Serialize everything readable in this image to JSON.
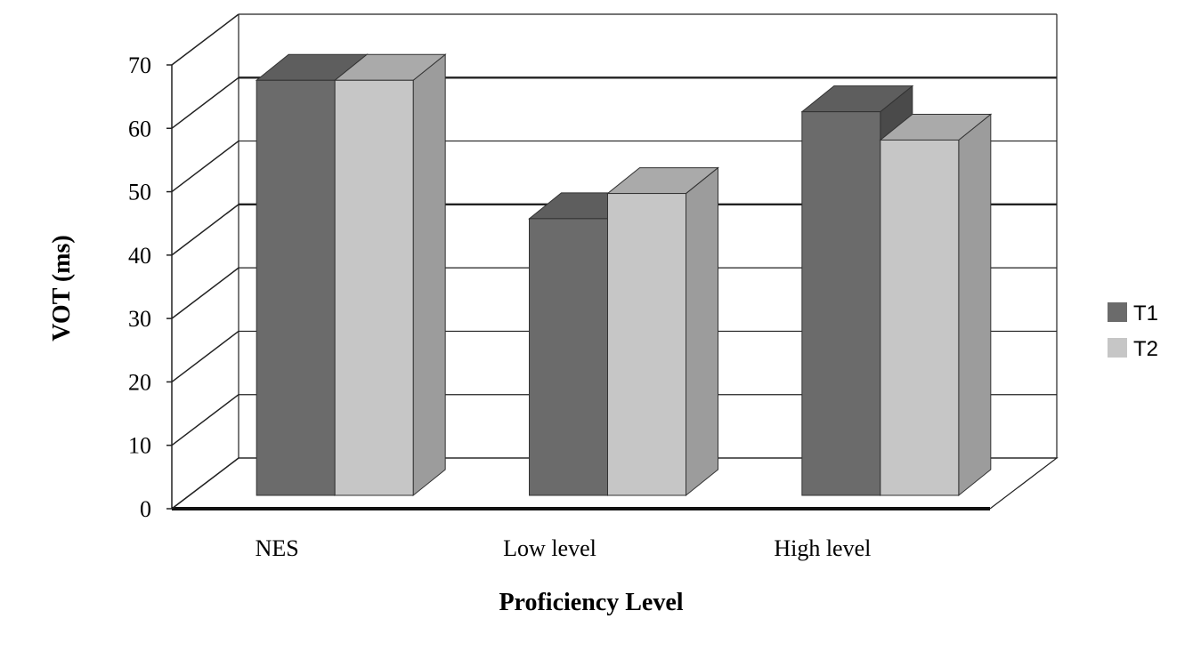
{
  "chart_data": {
    "type": "bar",
    "categories": [
      "NES",
      "Low level",
      "High level"
    ],
    "series": [
      {
        "name": "T1",
        "values": [
          66,
          44,
          61
        ],
        "color": "#6b6b6b",
        "side_color": "#4a4a4a",
        "top_color": "#5e5e5e"
      },
      {
        "name": "T2",
        "values": [
          66,
          48,
          56.5
        ],
        "color": "#c6c6c6",
        "side_color": "#9c9c9c",
        "top_color": "#aaaaaa"
      }
    ],
    "xlabel": "Proficiency Level",
    "ylabel": "VOT (ms)",
    "ylim": [
      0,
      70
    ],
    "yticks": [
      0,
      10,
      20,
      30,
      40,
      50,
      60,
      70
    ],
    "grid": true,
    "legend": "right",
    "three_d": true
  }
}
